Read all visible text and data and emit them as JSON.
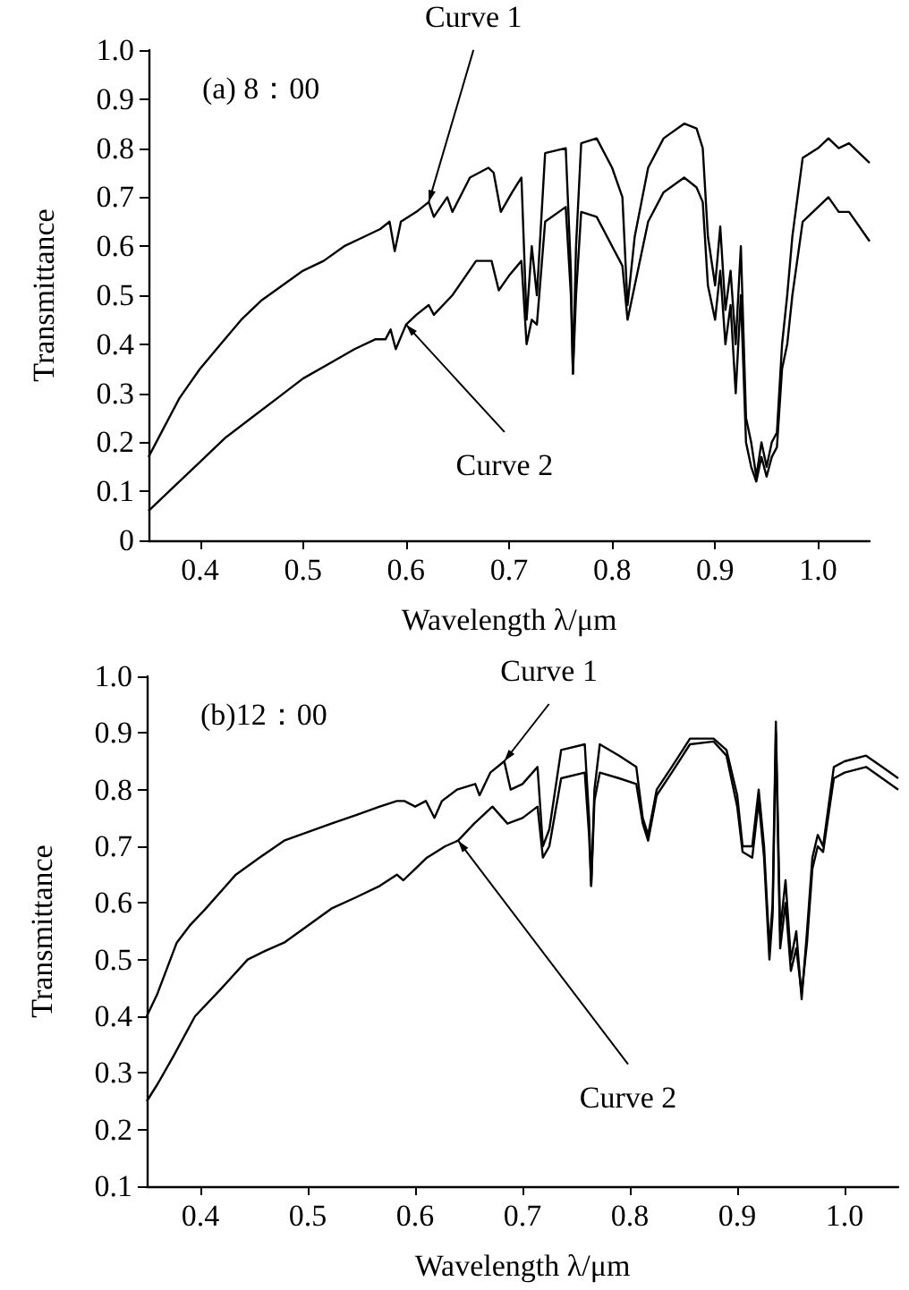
{
  "chart_data": [
    {
      "type": "line",
      "title": "(a) 8：00",
      "xlabel": "Wavelength λ/μm",
      "ylabel": "Transmittance",
      "xlim": [
        0.35,
        1.05
      ],
      "xticks": [
        0.4,
        0.5,
        0.6,
        0.7,
        0.8,
        0.9,
        {
          "value": 1,
          "label": "1.0"
        }
      ],
      "ylim": [
        0,
        1
      ],
      "yticks": [
        0,
        0.1,
        0.2,
        0.3,
        0.4,
        0.5,
        0.6,
        0.7,
        0.8,
        0.9,
        {
          "value": 1,
          "label": "1.0"
        }
      ],
      "grid": false,
      "marker": "none",
      "line_style": "solid",
      "annotations": [
        {
          "text": "Curve 1",
          "x": 0.622,
          "y": 0.69
        },
        {
          "text": "Curve 2",
          "x": 0.6,
          "y": 0.44
        }
      ],
      "series": [
        {
          "color": "#000000",
          "x": [
            0.35,
            0.36,
            0.37,
            0.38,
            0.39,
            0.4,
            0.42,
            0.44,
            0.46,
            0.48,
            0.5,
            0.52,
            0.54,
            0.56,
            0.575,
            0.584,
            0.589,
            0.595,
            0.61,
            0.622,
            0.627,
            0.64,
            0.645,
            0.662,
            0.68,
            0.685,
            0.692,
            0.703,
            0.712,
            0.717,
            0.722,
            0.727,
            0.735,
            0.755,
            0.76,
            0.762,
            0.765,
            0.77,
            0.785,
            0.8,
            0.81,
            0.815,
            0.822,
            0.835,
            0.85,
            0.87,
            0.882,
            0.888,
            0.893,
            0.9,
            0.905,
            0.91,
            0.915,
            0.92,
            0.925,
            0.93,
            0.935,
            0.94,
            0.945,
            0.95,
            0.955,
            0.96,
            0.965,
            0.97,
            0.975,
            0.985,
            1.0,
            1.01,
            1.02,
            1.03,
            1.04,
            1.05
          ],
          "values": [
            0.17,
            0.21,
            0.25,
            0.29,
            0.32,
            0.35,
            0.4,
            0.45,
            0.49,
            0.52,
            0.55,
            0.57,
            0.6,
            0.62,
            0.635,
            0.65,
            0.59,
            0.65,
            0.67,
            0.69,
            0.66,
            0.7,
            0.67,
            0.74,
            0.76,
            0.75,
            0.67,
            0.71,
            0.74,
            0.45,
            0.6,
            0.5,
            0.79,
            0.8,
            0.55,
            0.34,
            0.6,
            0.81,
            0.82,
            0.76,
            0.7,
            0.48,
            0.62,
            0.76,
            0.82,
            0.85,
            0.84,
            0.8,
            0.62,
            0.52,
            0.64,
            0.47,
            0.55,
            0.4,
            0.6,
            0.25,
            0.2,
            0.13,
            0.2,
            0.15,
            0.2,
            0.22,
            0.4,
            0.5,
            0.62,
            0.78,
            0.8,
            0.82,
            0.8,
            0.81,
            0.79,
            0.77
          ]
        },
        {
          "color": "#000000",
          "x": [
            0.35,
            0.37,
            0.4,
            0.425,
            0.45,
            0.475,
            0.5,
            0.525,
            0.55,
            0.57,
            0.58,
            0.585,
            0.59,
            0.6,
            0.61,
            0.622,
            0.627,
            0.645,
            0.668,
            0.683,
            0.69,
            0.7,
            0.712,
            0.717,
            0.722,
            0.727,
            0.735,
            0.755,
            0.76,
            0.762,
            0.765,
            0.77,
            0.785,
            0.8,
            0.81,
            0.815,
            0.822,
            0.835,
            0.85,
            0.87,
            0.882,
            0.888,
            0.893,
            0.9,
            0.905,
            0.91,
            0.915,
            0.92,
            0.925,
            0.93,
            0.935,
            0.94,
            0.945,
            0.95,
            0.955,
            0.96,
            0.965,
            0.97,
            0.975,
            0.985,
            1.0,
            1.01,
            1.02,
            1.03,
            1.04,
            1.05
          ],
          "values": [
            0.06,
            0.1,
            0.16,
            0.21,
            0.25,
            0.29,
            0.33,
            0.36,
            0.39,
            0.41,
            0.41,
            0.43,
            0.39,
            0.44,
            0.46,
            0.48,
            0.46,
            0.5,
            0.57,
            0.57,
            0.51,
            0.54,
            0.57,
            0.4,
            0.45,
            0.44,
            0.65,
            0.68,
            0.5,
            0.34,
            0.5,
            0.67,
            0.66,
            0.6,
            0.56,
            0.45,
            0.52,
            0.65,
            0.71,
            0.74,
            0.72,
            0.69,
            0.52,
            0.45,
            0.55,
            0.4,
            0.48,
            0.3,
            0.5,
            0.2,
            0.15,
            0.12,
            0.17,
            0.13,
            0.17,
            0.19,
            0.35,
            0.4,
            0.5,
            0.65,
            0.68,
            0.7,
            0.67,
            0.67,
            0.64,
            0.61
          ]
        }
      ]
    },
    {
      "type": "line",
      "title": "(b)12：00",
      "xlabel": "Wavelength λ/μm",
      "ylabel": "Transmittance",
      "xlim": [
        0.35,
        1.05
      ],
      "xticks": [
        0.4,
        0.5,
        0.6,
        0.7,
        0.8,
        0.9,
        {
          "value": 1,
          "label": "1.0"
        }
      ],
      "ylim": [
        0.1,
        1
      ],
      "yticks": [
        0.1,
        0.2,
        0.3,
        0.4,
        0.5,
        0.6,
        0.7,
        0.8,
        0.9,
        {
          "value": 1,
          "label": "1.0"
        }
      ],
      "grid": false,
      "marker": "none",
      "line_style": "solid",
      "annotations": [
        {
          "text": "Curve 1",
          "x": 0.683,
          "y": 0.85
        },
        {
          "text": "Curve 2",
          "x": 0.64,
          "y": 0.71
        }
      ],
      "series": [
        {
          "color": "#000000",
          "x": [
            0.35,
            0.36,
            0.378,
            0.39,
            0.405,
            0.433,
            0.455,
            0.478,
            0.5,
            0.522,
            0.545,
            0.567,
            0.583,
            0.59,
            0.6,
            0.61,
            0.618,
            0.625,
            0.639,
            0.656,
            0.66,
            0.67,
            0.683,
            0.689,
            0.7,
            0.714,
            0.719,
            0.725,
            0.736,
            0.758,
            0.762,
            0.764,
            0.767,
            0.772,
            0.79,
            0.806,
            0.812,
            0.817,
            0.825,
            0.839,
            0.856,
            0.878,
            0.89,
            0.9,
            0.905,
            0.914,
            0.92,
            0.925,
            0.93,
            0.933,
            0.936,
            0.94,
            0.945,
            0.95,
            0.955,
            0.96,
            0.965,
            0.97,
            0.975,
            0.98,
            0.99,
            1.0,
            1.02,
            1.035,
            1.05
          ],
          "values": [
            0.4,
            0.44,
            0.53,
            0.56,
            0.59,
            0.65,
            0.68,
            0.71,
            0.725,
            0.74,
            0.755,
            0.77,
            0.78,
            0.78,
            0.77,
            0.78,
            0.75,
            0.78,
            0.8,
            0.81,
            0.79,
            0.83,
            0.85,
            0.8,
            0.81,
            0.84,
            0.7,
            0.73,
            0.87,
            0.88,
            0.75,
            0.63,
            0.8,
            0.88,
            0.86,
            0.84,
            0.75,
            0.72,
            0.8,
            0.84,
            0.89,
            0.89,
            0.87,
            0.79,
            0.7,
            0.7,
            0.8,
            0.7,
            0.52,
            0.6,
            0.92,
            0.55,
            0.64,
            0.5,
            0.55,
            0.43,
            0.55,
            0.68,
            0.72,
            0.7,
            0.84,
            0.85,
            0.86,
            0.84,
            0.82
          ]
        },
        {
          "color": "#000000",
          "x": [
            0.35,
            0.36,
            0.375,
            0.395,
            0.42,
            0.444,
            0.46,
            0.478,
            0.5,
            0.522,
            0.545,
            0.567,
            0.583,
            0.589,
            0.6,
            0.611,
            0.628,
            0.64,
            0.655,
            0.672,
            0.686,
            0.7,
            0.714,
            0.719,
            0.725,
            0.736,
            0.758,
            0.762,
            0.764,
            0.767,
            0.772,
            0.79,
            0.806,
            0.812,
            0.817,
            0.825,
            0.839,
            0.856,
            0.878,
            0.89,
            0.9,
            0.905,
            0.914,
            0.92,
            0.925,
            0.93,
            0.933,
            0.936,
            0.94,
            0.945,
            0.95,
            0.955,
            0.96,
            0.965,
            0.97,
            0.975,
            0.98,
            0.99,
            1.0,
            1.02,
            1.035,
            1.05
          ],
          "values": [
            0.25,
            0.28,
            0.33,
            0.4,
            0.45,
            0.5,
            0.515,
            0.53,
            0.56,
            0.59,
            0.61,
            0.63,
            0.65,
            0.64,
            0.66,
            0.68,
            0.7,
            0.71,
            0.74,
            0.77,
            0.74,
            0.75,
            0.77,
            0.68,
            0.7,
            0.82,
            0.83,
            0.72,
            0.63,
            0.78,
            0.83,
            0.82,
            0.81,
            0.74,
            0.71,
            0.79,
            0.83,
            0.88,
            0.885,
            0.86,
            0.77,
            0.69,
            0.68,
            0.78,
            0.68,
            0.5,
            0.58,
            0.9,
            0.52,
            0.6,
            0.48,
            0.52,
            0.44,
            0.53,
            0.66,
            0.7,
            0.69,
            0.82,
            0.83,
            0.84,
            0.82,
            0.8
          ]
        }
      ]
    }
  ]
}
